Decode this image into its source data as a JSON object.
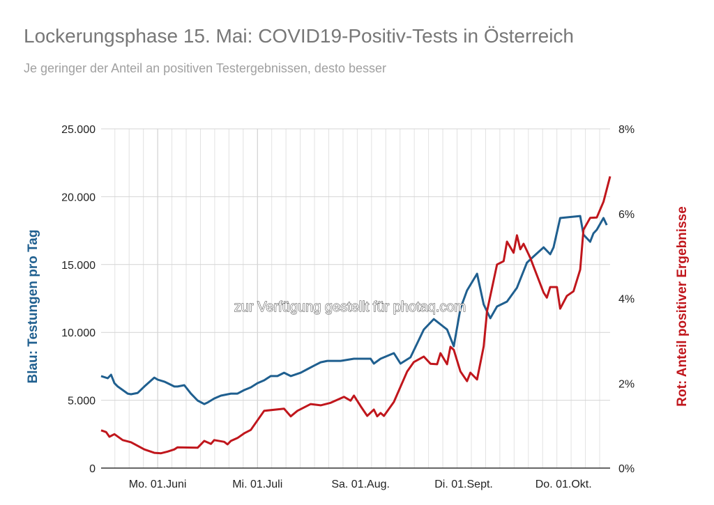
{
  "chart_data": {
    "type": "line",
    "title": "Lockerungsphase 15. Mai: COVID19-Positiv-Tests in Österreich",
    "subtitle": "Je geringer der Anteil an positiven Testergebnissen, desto besser",
    "ylabel": "Blau: Testungen pro Tag",
    "y2label": "Rot: Anteil positiver Ergebnisse",
    "watermark": "zur Verfügung gestellt für photaq.com",
    "x_unit": "days since 15 May",
    "xlim": [
      0,
      153
    ],
    "ylim": [
      0,
      25000
    ],
    "y2lim": [
      0,
      8
    ],
    "grid": true,
    "yticks": [
      "0",
      "5.000",
      "10.000",
      "15.000",
      "20.000",
      "25.000"
    ],
    "ytick_values": [
      0,
      5000,
      10000,
      15000,
      20000,
      25000
    ],
    "y2ticks": [
      "0%",
      "2%",
      "4%",
      "6%",
      "8%"
    ],
    "y2tick_values": [
      0,
      2,
      4,
      6,
      8
    ],
    "xticks": [
      {
        "label": "Mo. 01.Juni",
        "day": 17
      },
      {
        "label": "Mi. 01.Juli",
        "day": 47
      },
      {
        "label": "Sa. 01.Aug.",
        "day": 78
      },
      {
        "label": "Di. 01.Sept.",
        "day": 109
      },
      {
        "label": "Do. 01.Okt.",
        "day": 139
      }
    ],
    "colors": {
      "blue": "#1f5f8f",
      "red": "#c0161c",
      "grid": "#d4d4d4",
      "axis": "#333333"
    },
    "series": [
      {
        "name": "Testungen pro Tag",
        "axis": "left",
        "color": "#1f5f8f",
        "points": [
          [
            0,
            6780
          ],
          [
            2,
            6620
          ],
          [
            3,
            6880
          ],
          [
            4,
            6260
          ],
          [
            5,
            6010
          ],
          [
            8,
            5490
          ],
          [
            9,
            5440
          ],
          [
            11,
            5540
          ],
          [
            13,
            6010
          ],
          [
            16,
            6670
          ],
          [
            17,
            6520
          ],
          [
            19,
            6370
          ],
          [
            20,
            6260
          ],
          [
            22,
            6010
          ],
          [
            23,
            6010
          ],
          [
            25,
            6110
          ],
          [
            27,
            5490
          ],
          [
            29,
            4980
          ],
          [
            31,
            4720
          ],
          [
            32,
            4830
          ],
          [
            34,
            5130
          ],
          [
            36,
            5340
          ],
          [
            39,
            5490
          ],
          [
            41,
            5490
          ],
          [
            43,
            5750
          ],
          [
            45,
            5950
          ],
          [
            47,
            6260
          ],
          [
            49,
            6470
          ],
          [
            51,
            6780
          ],
          [
            53,
            6780
          ],
          [
            55,
            7030
          ],
          [
            57,
            6780
          ],
          [
            60,
            7030
          ],
          [
            62,
            7290
          ],
          [
            64,
            7550
          ],
          [
            66,
            7800
          ],
          [
            68,
            7900
          ],
          [
            72,
            7900
          ],
          [
            76,
            8060
          ],
          [
            81,
            8060
          ],
          [
            82,
            7700
          ],
          [
            84,
            8060
          ],
          [
            88,
            8470
          ],
          [
            90,
            7700
          ],
          [
            93,
            8160
          ],
          [
            95,
            9190
          ],
          [
            97,
            10210
          ],
          [
            100,
            10980
          ],
          [
            104,
            10210
          ],
          [
            106,
            8980
          ],
          [
            108,
            11750
          ],
          [
            110,
            13090
          ],
          [
            113,
            14320
          ],
          [
            115,
            12060
          ],
          [
            117,
            11040
          ],
          [
            119,
            11910
          ],
          [
            122,
            12270
          ],
          [
            125,
            13290
          ],
          [
            128,
            15140
          ],
          [
            130,
            15600
          ],
          [
            133,
            16270
          ],
          [
            135,
            15760
          ],
          [
            136,
            16270
          ],
          [
            138,
            18430
          ],
          [
            144,
            18580
          ],
          [
            145,
            17200
          ],
          [
            147,
            16680
          ],
          [
            148,
            17300
          ],
          [
            149,
            17560
          ],
          [
            151,
            18430
          ],
          [
            152,
            17910
          ]
        ]
      },
      {
        "name": "Anteil positiver Ergebnisse (%)",
        "axis": "right",
        "color": "#c0161c",
        "points": [
          [
            0,
            0.89
          ],
          [
            1.5,
            0.85
          ],
          [
            2.5,
            0.74
          ],
          [
            4,
            0.8
          ],
          [
            6.5,
            0.66
          ],
          [
            9,
            0.61
          ],
          [
            13,
            0.44
          ],
          [
            16,
            0.36
          ],
          [
            18,
            0.35
          ],
          [
            20,
            0.39
          ],
          [
            22,
            0.44
          ],
          [
            23,
            0.49
          ],
          [
            29,
            0.48
          ],
          [
            31,
            0.64
          ],
          [
            33,
            0.57
          ],
          [
            34,
            0.66
          ],
          [
            37,
            0.62
          ],
          [
            38,
            0.56
          ],
          [
            39,
            0.64
          ],
          [
            41,
            0.71
          ],
          [
            43,
            0.82
          ],
          [
            45,
            0.9
          ],
          [
            49,
            1.35
          ],
          [
            55,
            1.4
          ],
          [
            57,
            1.22
          ],
          [
            59,
            1.35
          ],
          [
            63,
            1.51
          ],
          [
            66,
            1.48
          ],
          [
            69,
            1.54
          ],
          [
            73,
            1.68
          ],
          [
            75,
            1.59
          ],
          [
            76,
            1.71
          ],
          [
            78,
            1.46
          ],
          [
            80,
            1.23
          ],
          [
            82,
            1.38
          ],
          [
            83,
            1.22
          ],
          [
            84,
            1.3
          ],
          [
            85,
            1.23
          ],
          [
            88,
            1.56
          ],
          [
            92,
            2.28
          ],
          [
            94,
            2.5
          ],
          [
            97,
            2.63
          ],
          [
            99,
            2.46
          ],
          [
            101,
            2.45
          ],
          [
            102,
            2.71
          ],
          [
            104,
            2.45
          ],
          [
            105,
            2.86
          ],
          [
            106,
            2.79
          ],
          [
            108,
            2.28
          ],
          [
            110,
            2.05
          ],
          [
            111,
            2.25
          ],
          [
            113,
            2.09
          ],
          [
            115,
            2.87
          ],
          [
            116,
            3.7
          ],
          [
            119,
            4.8
          ],
          [
            121,
            4.88
          ],
          [
            122,
            5.34
          ],
          [
            124,
            5.08
          ],
          [
            125,
            5.49
          ],
          [
            126,
            5.16
          ],
          [
            127,
            5.29
          ],
          [
            129,
            4.96
          ],
          [
            130,
            4.75
          ],
          [
            133,
            4.14
          ],
          [
            134,
            4.02
          ],
          [
            135,
            4.27
          ],
          [
            137,
            4.27
          ],
          [
            138,
            3.76
          ],
          [
            140,
            4.06
          ],
          [
            142,
            4.17
          ],
          [
            144,
            4.68
          ],
          [
            145,
            5.62
          ],
          [
            147,
            5.9
          ],
          [
            149,
            5.91
          ],
          [
            151,
            6.28
          ],
          [
            153,
            6.88
          ]
        ]
      }
    ]
  }
}
